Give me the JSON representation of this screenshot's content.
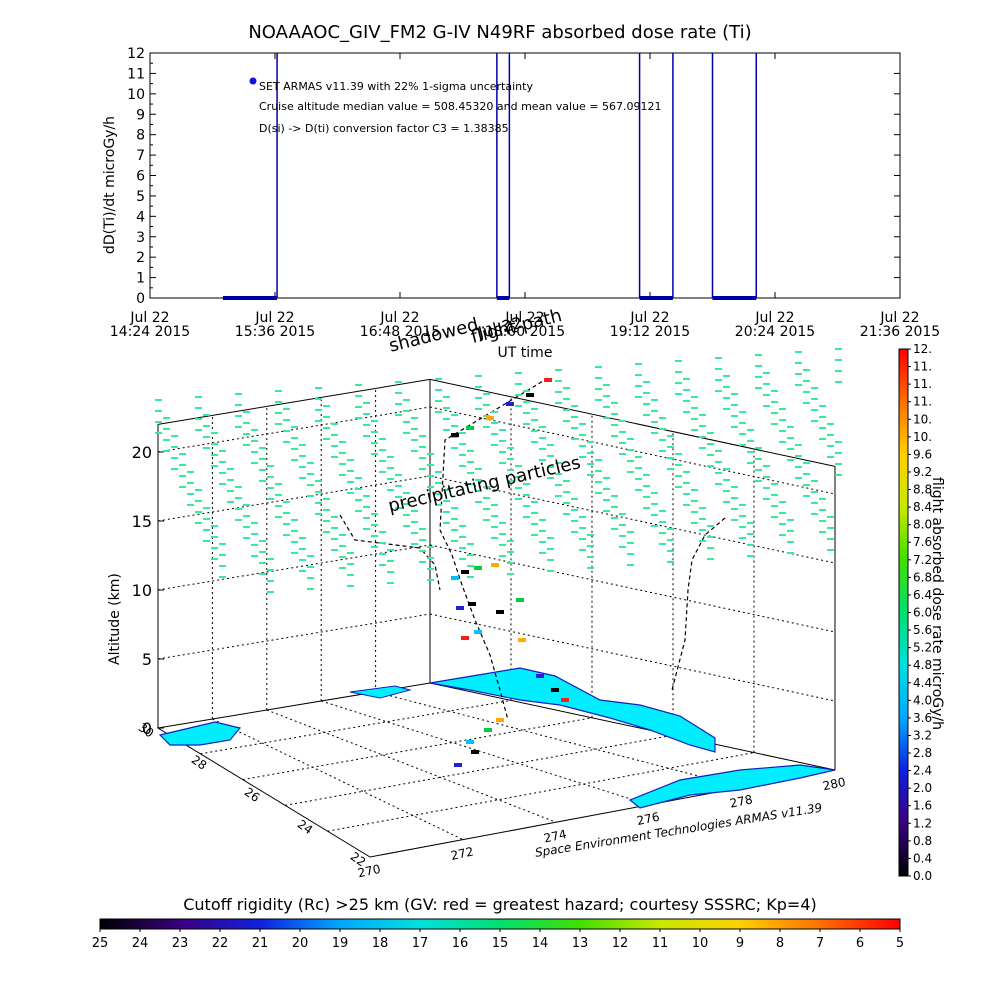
{
  "title": "NOAAAOC_GIV_FM2 G-IV    N49RF  absorbed dose rate (Ti)",
  "chart_data": [
    {
      "type": "line",
      "title": "NOAAAOC_GIV_FM2 G-IV    N49RF  absorbed dose rate (Ti)",
      "ylabel": "dD(Ti)/dt microGy/h",
      "xlabel": "UT time",
      "ylim": [
        0,
        12
      ],
      "y_ticks": [
        "0",
        "1",
        "2",
        "3",
        "4",
        "5",
        "6",
        "7",
        "8",
        "9",
        "10",
        "11",
        "12"
      ],
      "x_tick_labels": [
        [
          "Jul 22",
          "14:24 2015"
        ],
        [
          "Jul 22",
          "15:36 2015"
        ],
        [
          "Jul 22",
          "16:48 2015"
        ],
        [
          "Jul 22",
          "18:00 2015"
        ],
        [
          "Jul 22",
          "19:12 2015"
        ],
        [
          "Jul 22",
          "20:24 2015"
        ],
        [
          "Jul 22",
          "21:36 2015"
        ]
      ],
      "x_range_hours": [
        14.4,
        21.6
      ],
      "annotations": [
        "SET ARMAS v11.39 with 22% 1-sigma uncertainty",
        "Cruise altitude median value = 508.45320 and mean value = 567.09121",
        "D(si) -> D(ti) conversion factor C3 = 1.38385"
      ],
      "legend_marker_color": "#1010dd",
      "series_color": "#0000aa",
      "data_segments_hours": [
        [
          15.1,
          15.62
        ],
        [
          17.73,
          17.85
        ],
        [
          19.1,
          19.42
        ],
        [
          19.8,
          20.22
        ]
      ],
      "spikes_hours": [
        15.62,
        17.73,
        17.85,
        19.1,
        19.42,
        19.8,
        20.22
      ],
      "series": [
        {
          "x": [
            15.1,
            15.62,
            15.62
          ],
          "y": [
            0,
            0,
            12
          ]
        },
        {
          "x": [
            17.73,
            17.73,
            17.85,
            17.85
          ],
          "y": [
            12,
            0,
            0,
            12
          ]
        },
        {
          "x": [
            19.1,
            19.1,
            19.42,
            19.42
          ],
          "y": [
            12,
            0,
            0,
            12
          ]
        },
        {
          "x": [
            19.8,
            19.8,
            20.22,
            20.22
          ],
          "y": [
            12,
            0,
            0,
            12
          ]
        }
      ]
    },
    {
      "type": "scatter",
      "title": "",
      "zlabel": "Altitude (km)",
      "z_ticks": [
        "0",
        "5",
        "10",
        "15",
        "20"
      ],
      "zlim": [
        0,
        22
      ],
      "x_ticks": [
        "270",
        "272",
        "274",
        "276",
        "278",
        "280"
      ],
      "y_ticks": [
        "22",
        "24",
        "26",
        "28",
        "30"
      ],
      "labels": [
        "flight path",
        "shadowed",
        "Jul 22",
        "precipitating particles"
      ],
      "credit": "Space Environment Technologies ARMAS v11.39",
      "colorbar": {
        "label": "flight absorbed dose rate microGy/h",
        "ticks": [
          "0.0",
          "0.4",
          "0.8",
          "1.2",
          "1.6",
          "2.0",
          "2.4",
          "2.8",
          "3.2",
          "3.6",
          "4.0",
          "4.4",
          "4.8",
          "5.2",
          "5.6",
          "6.0",
          "6.4",
          "6.8",
          "7.2",
          "7.6",
          "8.0",
          "8.4",
          "8.8",
          "9.2",
          "9.6",
          "10.",
          "10.",
          "11.",
          "11.",
          "11.",
          "12."
        ]
      },
      "particle_color": "#33ee99",
      "land_color": "#00eeff",
      "coast_color": "#1020c0"
    },
    {
      "type": "heatmap",
      "title": "Cutoff rigidity (Rc) >25 km (GV: red = greatest hazard; courtesy SSSRC; Kp=4)",
      "ticks": [
        "25",
        "24",
        "23",
        "22",
        "21",
        "20",
        "19",
        "18",
        "17",
        "16",
        "15",
        "14",
        "13",
        "12",
        "11",
        "10",
        "9",
        "8",
        "7",
        "6",
        "5"
      ]
    }
  ]
}
